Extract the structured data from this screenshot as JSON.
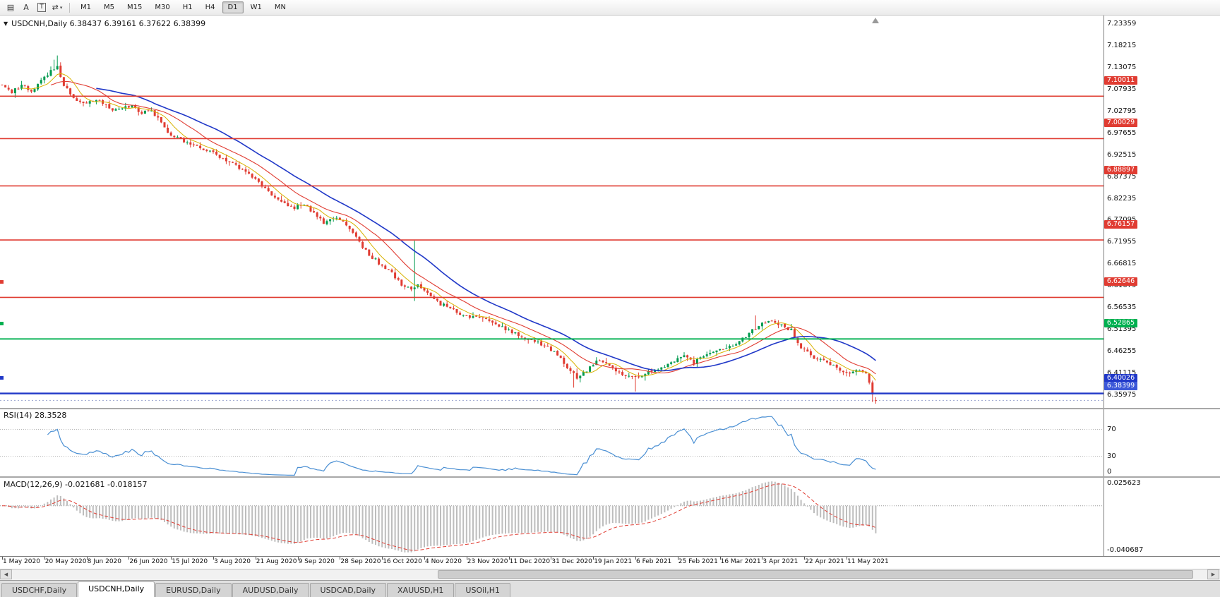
{
  "toolbar": {
    "tools": [
      {
        "name": "chart-list-icon",
        "glyph": "▤"
      },
      {
        "name": "cursor-a-tool",
        "glyph": "A"
      },
      {
        "name": "text-tool",
        "glyph": "T",
        "boxed": true
      },
      {
        "name": "line-studies-icon",
        "glyph": "⇄",
        "caret": "▾"
      }
    ],
    "timeframes": [
      "M1",
      "M5",
      "M15",
      "M30",
      "H1",
      "H4",
      "D1",
      "W1",
      "MN"
    ],
    "active_timeframe": "D1"
  },
  "legend": {
    "collapse_icon": "▼",
    "text": "USDCNH,Daily 6.38437 6.39161 6.37622 6.38399"
  },
  "panels": {
    "rsi_label": "RSI(14) 28.3528",
    "macd_label": "MACD(12,26,9) -0.021681 -0.018157"
  },
  "tabs": {
    "items": [
      "USDCHF,Daily",
      "USDCNH,Daily",
      "EURUSD,Daily",
      "AUDUSD,Daily",
      "USDCAD,Daily",
      "XAUUSD,H1",
      "USOil,H1"
    ],
    "active": "USDCNH,Daily"
  },
  "chart_data": {
    "type": "candlestick",
    "symbol": "USDCNH",
    "period": "Daily",
    "quote": {
      "open": 6.38437,
      "high": 6.39161,
      "low": 6.37622,
      "close": 6.38399
    },
    "bars": 270,
    "bar_spacing": 4.6,
    "ylim": [
      6.3298,
      7.2535
    ],
    "colors": {
      "up": "#009a4e",
      "down": "#e03c32",
      "ma_fast": "#d8b200",
      "ma_mid": "#e03c32",
      "ma_slow": "#2038c8",
      "level_red": "#e03c32",
      "level_green": "#00b050",
      "level_blue": "#2038c8",
      "bid": "#3c58d8",
      "rsi": "#4a8fd3",
      "macd_hist": "#bdbdbd",
      "macd_signal": "#e03c32"
    },
    "y_axis_labels": [
      "7.23359",
      "7.18215",
      "7.13075",
      "7.07935",
      "7.02795",
      "6.97655",
      "6.92515",
      "6.87375",
      "6.82235",
      "6.77095",
      "6.71955",
      "6.66815",
      "6.61675",
      "6.56535",
      "6.51395",
      "6.46255",
      "6.41115",
      "6.35975"
    ],
    "x_axis_labels": [
      "1 May 2020",
      "20 May 2020",
      "8 Jun 2020",
      "26 Jun 2020",
      "15 Jul 2020",
      "3 Aug 2020",
      "21 Aug 2020",
      "9 Sep 2020",
      "28 Sep 2020",
      "16 Oct 2020",
      "4 Nov 2020",
      "23 Nov 2020",
      "11 Dec 2020",
      "31 Dec 2020",
      "19 Jan 2021",
      "6 Feb 2021",
      "25 Feb 2021",
      "16 Mar 2021",
      "3 Apr 2021",
      "22 Apr 2021",
      "11 May 2021"
    ],
    "x_label_step": 13,
    "levels": [
      {
        "price": 7.10011,
        "label": "7.10011",
        "color": "red",
        "width": 1.6
      },
      {
        "price": 7.00029,
        "label": "7.00029",
        "color": "red",
        "width": 1.6
      },
      {
        "price": 6.88897,
        "label": "6.88897",
        "color": "red",
        "width": 1.6
      },
      {
        "price": 6.76157,
        "label": "6.76157",
        "color": "red",
        "width": 1.6
      },
      {
        "price": 6.62646,
        "label": "6.62646",
        "color": "red",
        "width": 1.6,
        "handle": true
      },
      {
        "price": 6.52865,
        "label": "6.52865",
        "color": "green",
        "width": 1.8,
        "handle": true
      },
      {
        "price": 6.40026,
        "label": "6.40026",
        "color": "blue",
        "width": 2.4,
        "handle": true
      }
    ],
    "bid_line": {
      "price": 6.38399,
      "label": "6.38399"
    },
    "moving_averages": [
      {
        "period": 7,
        "colorKey": "ma_fast",
        "width": 1.0
      },
      {
        "period": 16,
        "colorKey": "ma_mid",
        "width": 1.1
      },
      {
        "period": 30,
        "colorKey": "ma_slow",
        "width": 1.6
      }
    ],
    "trend_anchors": [
      [
        0,
        7.128
      ],
      [
        3,
        7.11
      ],
      [
        6,
        7.125
      ],
      [
        9,
        7.112
      ],
      [
        12,
        7.135
      ],
      [
        15,
        7.158
      ],
      [
        17,
        7.172
      ],
      [
        19,
        7.125
      ],
      [
        22,
        7.096
      ],
      [
        25,
        7.082
      ],
      [
        28,
        7.091
      ],
      [
        31,
        7.085
      ],
      [
        34,
        7.068
      ],
      [
        37,
        7.072
      ],
      [
        40,
        7.076
      ],
      [
        43,
        7.062
      ],
      [
        46,
        7.068
      ],
      [
        49,
        7.036
      ],
      [
        52,
        7.006
      ],
      [
        55,
        6.998
      ],
      [
        58,
        6.989
      ],
      [
        61,
        6.976
      ],
      [
        64,
        6.972
      ],
      [
        67,
        6.956
      ],
      [
        70,
        6.948
      ],
      [
        73,
        6.931
      ],
      [
        76,
        6.916
      ],
      [
        78,
        6.906
      ],
      [
        81,
        6.881
      ],
      [
        84,
        6.863
      ],
      [
        87,
        6.846
      ],
      [
        90,
        6.838
      ],
      [
        93,
        6.846
      ],
      [
        96,
        6.826
      ],
      [
        99,
        6.801
      ],
      [
        102,
        6.812
      ],
      [
        105,
        6.808
      ],
      [
        108,
        6.779
      ],
      [
        111,
        6.743
      ],
      [
        114,
        6.721
      ],
      [
        117,
        6.701
      ],
      [
        120,
        6.683
      ],
      [
        123,
        6.656
      ],
      [
        126,
        6.646
      ],
      [
        128,
        6.655
      ],
      [
        130,
        6.641
      ],
      [
        132,
        6.629
      ],
      [
        135,
        6.611
      ],
      [
        138,
        6.603
      ],
      [
        141,
        6.586
      ],
      [
        144,
        6.581
      ],
      [
        147,
        6.577
      ],
      [
        150,
        6.573
      ],
      [
        153,
        6.561
      ],
      [
        156,
        6.549
      ],
      [
        159,
        6.536
      ],
      [
        162,
        6.529
      ],
      [
        165,
        6.519
      ],
      [
        168,
        6.509
      ],
      [
        171,
        6.493
      ],
      [
        174,
        6.463
      ],
      [
        177,
        6.439
      ],
      [
        180,
        6.453
      ],
      [
        183,
        6.479
      ],
      [
        186,
        6.469
      ],
      [
        189,
        6.456
      ],
      [
        192,
        6.443
      ],
      [
        195,
        6.436
      ],
      [
        198,
        6.449
      ],
      [
        201,
        6.459
      ],
      [
        204,
        6.463
      ],
      [
        207,
        6.479
      ],
      [
        210,
        6.493
      ],
      [
        213,
        6.473
      ],
      [
        216,
        6.489
      ],
      [
        219,
        6.499
      ],
      [
        222,
        6.503
      ],
      [
        225,
        6.513
      ],
      [
        228,
        6.529
      ],
      [
        231,
        6.549
      ],
      [
        234,
        6.566
      ],
      [
        237,
        6.573
      ],
      [
        240,
        6.559
      ],
      [
        243,
        6.549
      ],
      [
        246,
        6.509
      ],
      [
        249,
        6.489
      ],
      [
        252,
        6.479
      ],
      [
        255,
        6.469
      ],
      [
        258,
        6.456
      ],
      [
        261,
        6.449
      ],
      [
        264,
        6.459
      ],
      [
        266,
        6.449
      ],
      [
        267,
        6.426
      ],
      [
        268,
        6.399
      ],
      [
        269,
        6.38399
      ]
    ],
    "spikes": [
      {
        "i": 16,
        "high": 7.186
      },
      {
        "i": 17,
        "high": 7.196
      },
      {
        "i": 127,
        "high": 6.76,
        "low": 6.618
      },
      {
        "i": 176,
        "low": 6.414
      },
      {
        "i": 195,
        "low": 6.405
      },
      {
        "i": 232,
        "high": 6.584
      },
      {
        "i": 268,
        "low": 6.38
      }
    ],
    "rsi": {
      "period": 14,
      "levels": [
        70,
        30
      ],
      "axis_labels": [
        "70",
        "30",
        "0"
      ]
    },
    "macd": {
      "fast": 12,
      "slow": 26,
      "signal": 9,
      "axis_labels": [
        "0.025623",
        "-0.040687"
      ]
    }
  }
}
